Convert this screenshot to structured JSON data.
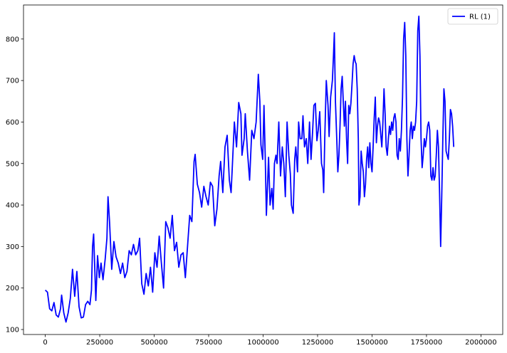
{
  "chart_data": {
    "type": "line",
    "title": "",
    "xlabel": "",
    "ylabel": "",
    "xlim": [
      -100000,
      2100000
    ],
    "ylim": [
      88,
      882
    ],
    "xticks": [
      0,
      250000,
      500000,
      750000,
      1000000,
      1250000,
      1500000,
      1750000,
      2000000
    ],
    "xtick_labels": [
      "0",
      "250000",
      "500000",
      "750000",
      "1000000",
      "1250000",
      "1500000",
      "1750000",
      "2000000"
    ],
    "yticks": [
      100,
      200,
      300,
      400,
      500,
      600,
      700,
      800
    ],
    "ytick_labels": [
      "100",
      "200",
      "300",
      "400",
      "500",
      "600",
      "700",
      "800"
    ],
    "grid": false,
    "legend_position": "top-right",
    "series": [
      {
        "name": "RL (1)",
        "color": "#0000ff",
        "points": [
          [
            0,
            195
          ],
          [
            10000,
            190
          ],
          [
            20000,
            150
          ],
          [
            30000,
            145
          ],
          [
            40000,
            165
          ],
          [
            50000,
            135
          ],
          [
            60000,
            130
          ],
          [
            70000,
            150
          ],
          [
            75000,
            183
          ],
          [
            85000,
            140
          ],
          [
            95000,
            118
          ],
          [
            105000,
            140
          ],
          [
            115000,
            175
          ],
          [
            125000,
            245
          ],
          [
            135000,
            180
          ],
          [
            145000,
            240
          ],
          [
            155000,
            155
          ],
          [
            165000,
            128
          ],
          [
            175000,
            130
          ],
          [
            185000,
            160
          ],
          [
            195000,
            168
          ],
          [
            205000,
            160
          ],
          [
            212000,
            195
          ],
          [
            217000,
            300
          ],
          [
            222000,
            330
          ],
          [
            232000,
            170
          ],
          [
            240000,
            278
          ],
          [
            248000,
            225
          ],
          [
            256000,
            260
          ],
          [
            265000,
            220
          ],
          [
            275000,
            270
          ],
          [
            283000,
            320
          ],
          [
            288000,
            420
          ],
          [
            295000,
            360
          ],
          [
            305000,
            245
          ],
          [
            315000,
            312
          ],
          [
            325000,
            275
          ],
          [
            335000,
            260
          ],
          [
            345000,
            235
          ],
          [
            355000,
            260
          ],
          [
            365000,
            225
          ],
          [
            375000,
            240
          ],
          [
            385000,
            290
          ],
          [
            395000,
            280
          ],
          [
            405000,
            305
          ],
          [
            415000,
            280
          ],
          [
            425000,
            290
          ],
          [
            433000,
            320
          ],
          [
            443000,
            210
          ],
          [
            453000,
            185
          ],
          [
            463000,
            235
          ],
          [
            473000,
            205
          ],
          [
            483000,
            250
          ],
          [
            493000,
            190
          ],
          [
            503000,
            285
          ],
          [
            513000,
            250
          ],
          [
            523000,
            325
          ],
          [
            533000,
            260
          ],
          [
            543000,
            200
          ],
          [
            553000,
            360
          ],
          [
            563000,
            345
          ],
          [
            573000,
            320
          ],
          [
            583000,
            375
          ],
          [
            593000,
            290
          ],
          [
            603000,
            310
          ],
          [
            613000,
            250
          ],
          [
            623000,
            280
          ],
          [
            633000,
            285
          ],
          [
            643000,
            225
          ],
          [
            653000,
            300
          ],
          [
            663000,
            375
          ],
          [
            673000,
            360
          ],
          [
            683000,
            505
          ],
          [
            688000,
            522
          ],
          [
            698000,
            450
          ],
          [
            708000,
            430
          ],
          [
            718000,
            395
          ],
          [
            728000,
            445
          ],
          [
            738000,
            420
          ],
          [
            748000,
            400
          ],
          [
            758000,
            455
          ],
          [
            768000,
            445
          ],
          [
            778000,
            350
          ],
          [
            788000,
            390
          ],
          [
            798000,
            470
          ],
          [
            805000,
            505
          ],
          [
            815000,
            430
          ],
          [
            825000,
            540
          ],
          [
            835000,
            568
          ],
          [
            845000,
            460
          ],
          [
            853000,
            430
          ],
          [
            858000,
            485
          ],
          [
            868000,
            600
          ],
          [
            878000,
            540
          ],
          [
            888000,
            647
          ],
          [
            898000,
            620
          ],
          [
            903000,
            520
          ],
          [
            913000,
            560
          ],
          [
            918000,
            620
          ],
          [
            928000,
            530
          ],
          [
            938000,
            460
          ],
          [
            948000,
            580
          ],
          [
            958000,
            560
          ],
          [
            968000,
            600
          ],
          [
            978000,
            715
          ],
          [
            985000,
            650
          ],
          [
            990000,
            545
          ],
          [
            998000,
            510
          ],
          [
            1004000,
            640
          ],
          [
            1010000,
            510
          ],
          [
            1015000,
            375
          ],
          [
            1025000,
            515
          ],
          [
            1032000,
            400
          ],
          [
            1040000,
            440
          ],
          [
            1046000,
            390
          ],
          [
            1052000,
            500
          ],
          [
            1059000,
            520
          ],
          [
            1064000,
            500
          ],
          [
            1072000,
            600
          ],
          [
            1080000,
            470
          ],
          [
            1088000,
            540
          ],
          [
            1095000,
            500
          ],
          [
            1102000,
            420
          ],
          [
            1110000,
            600
          ],
          [
            1118000,
            520
          ],
          [
            1125000,
            475
          ],
          [
            1130000,
            400
          ],
          [
            1138000,
            380
          ],
          [
            1145000,
            510
          ],
          [
            1150000,
            540
          ],
          [
            1158000,
            480
          ],
          [
            1163000,
            600
          ],
          [
            1170000,
            560
          ],
          [
            1178000,
            560
          ],
          [
            1183000,
            615
          ],
          [
            1190000,
            540
          ],
          [
            1198000,
            560
          ],
          [
            1205000,
            500
          ],
          [
            1213000,
            600
          ],
          [
            1220000,
            510
          ],
          [
            1226000,
            565
          ],
          [
            1233000,
            640
          ],
          [
            1240000,
            645
          ],
          [
            1247000,
            555
          ],
          [
            1253000,
            580
          ],
          [
            1260000,
            625
          ],
          [
            1268000,
            500
          ],
          [
            1274000,
            485
          ],
          [
            1278000,
            430
          ],
          [
            1283000,
            560
          ],
          [
            1290000,
            700
          ],
          [
            1298000,
            640
          ],
          [
            1303000,
            565
          ],
          [
            1310000,
            660
          ],
          [
            1318000,
            700
          ],
          [
            1323000,
            760
          ],
          [
            1327000,
            815
          ],
          [
            1332000,
            650
          ],
          [
            1338000,
            560
          ],
          [
            1343000,
            480
          ],
          [
            1348000,
            520
          ],
          [
            1353000,
            590
          ],
          [
            1358000,
            680
          ],
          [
            1363000,
            710
          ],
          [
            1368000,
            650
          ],
          [
            1373000,
            590
          ],
          [
            1378000,
            650
          ],
          [
            1383000,
            560
          ],
          [
            1388000,
            500
          ],
          [
            1393000,
            640
          ],
          [
            1398000,
            620
          ],
          [
            1403000,
            645
          ],
          [
            1408000,
            690
          ],
          [
            1413000,
            740
          ],
          [
            1418000,
            760
          ],
          [
            1423000,
            745
          ],
          [
            1427000,
            740
          ],
          [
            1432000,
            680
          ],
          [
            1437000,
            560
          ],
          [
            1440000,
            400
          ],
          [
            1445000,
            420
          ],
          [
            1450000,
            530
          ],
          [
            1455000,
            500
          ],
          [
            1460000,
            480
          ],
          [
            1465000,
            420
          ],
          [
            1470000,
            450
          ],
          [
            1475000,
            510
          ],
          [
            1480000,
            540
          ],
          [
            1485000,
            490
          ],
          [
            1490000,
            550
          ],
          [
            1495000,
            500
          ],
          [
            1500000,
            480
          ],
          [
            1505000,
            540
          ],
          [
            1510000,
            610
          ],
          [
            1515000,
            660
          ],
          [
            1520000,
            550
          ],
          [
            1525000,
            590
          ],
          [
            1530000,
            610
          ],
          [
            1535000,
            600
          ],
          [
            1540000,
            570
          ],
          [
            1545000,
            540
          ],
          [
            1550000,
            600
          ],
          [
            1555000,
            680
          ],
          [
            1560000,
            620
          ],
          [
            1565000,
            540
          ],
          [
            1570000,
            520
          ],
          [
            1575000,
            560
          ],
          [
            1580000,
            590
          ],
          [
            1585000,
            570
          ],
          [
            1590000,
            600
          ],
          [
            1595000,
            580
          ],
          [
            1600000,
            610
          ],
          [
            1605000,
            620
          ],
          [
            1610000,
            600
          ],
          [
            1615000,
            520
          ],
          [
            1620000,
            510
          ],
          [
            1625000,
            560
          ],
          [
            1630000,
            530
          ],
          [
            1635000,
            580
          ],
          [
            1640000,
            660
          ],
          [
            1645000,
            800
          ],
          [
            1650000,
            840
          ],
          [
            1655000,
            760
          ],
          [
            1660000,
            560
          ],
          [
            1665000,
            470
          ],
          [
            1670000,
            520
          ],
          [
            1675000,
            580
          ],
          [
            1680000,
            600
          ],
          [
            1685000,
            560
          ],
          [
            1690000,
            590
          ],
          [
            1695000,
            580
          ],
          [
            1700000,
            600
          ],
          [
            1705000,
            650
          ],
          [
            1710000,
            820
          ],
          [
            1715000,
            855
          ],
          [
            1720000,
            760
          ],
          [
            1725000,
            560
          ],
          [
            1730000,
            490
          ],
          [
            1735000,
            520
          ],
          [
            1740000,
            560
          ],
          [
            1745000,
            540
          ],
          [
            1750000,
            560
          ],
          [
            1755000,
            590
          ],
          [
            1760000,
            600
          ],
          [
            1765000,
            580
          ],
          [
            1770000,
            470
          ],
          [
            1775000,
            460
          ],
          [
            1780000,
            490
          ],
          [
            1785000,
            460
          ],
          [
            1790000,
            470
          ],
          [
            1795000,
            520
          ],
          [
            1800000,
            580
          ],
          [
            1805000,
            540
          ],
          [
            1810000,
            430
          ],
          [
            1815000,
            300
          ],
          [
            1820000,
            420
          ],
          [
            1825000,
            560
          ],
          [
            1830000,
            680
          ],
          [
            1835000,
            650
          ],
          [
            1840000,
            530
          ],
          [
            1845000,
            520
          ],
          [
            1850000,
            510
          ],
          [
            1855000,
            560
          ],
          [
            1860000,
            630
          ],
          [
            1865000,
            620
          ],
          [
            1870000,
            590
          ],
          [
            1875000,
            540
          ]
        ]
      }
    ]
  }
}
